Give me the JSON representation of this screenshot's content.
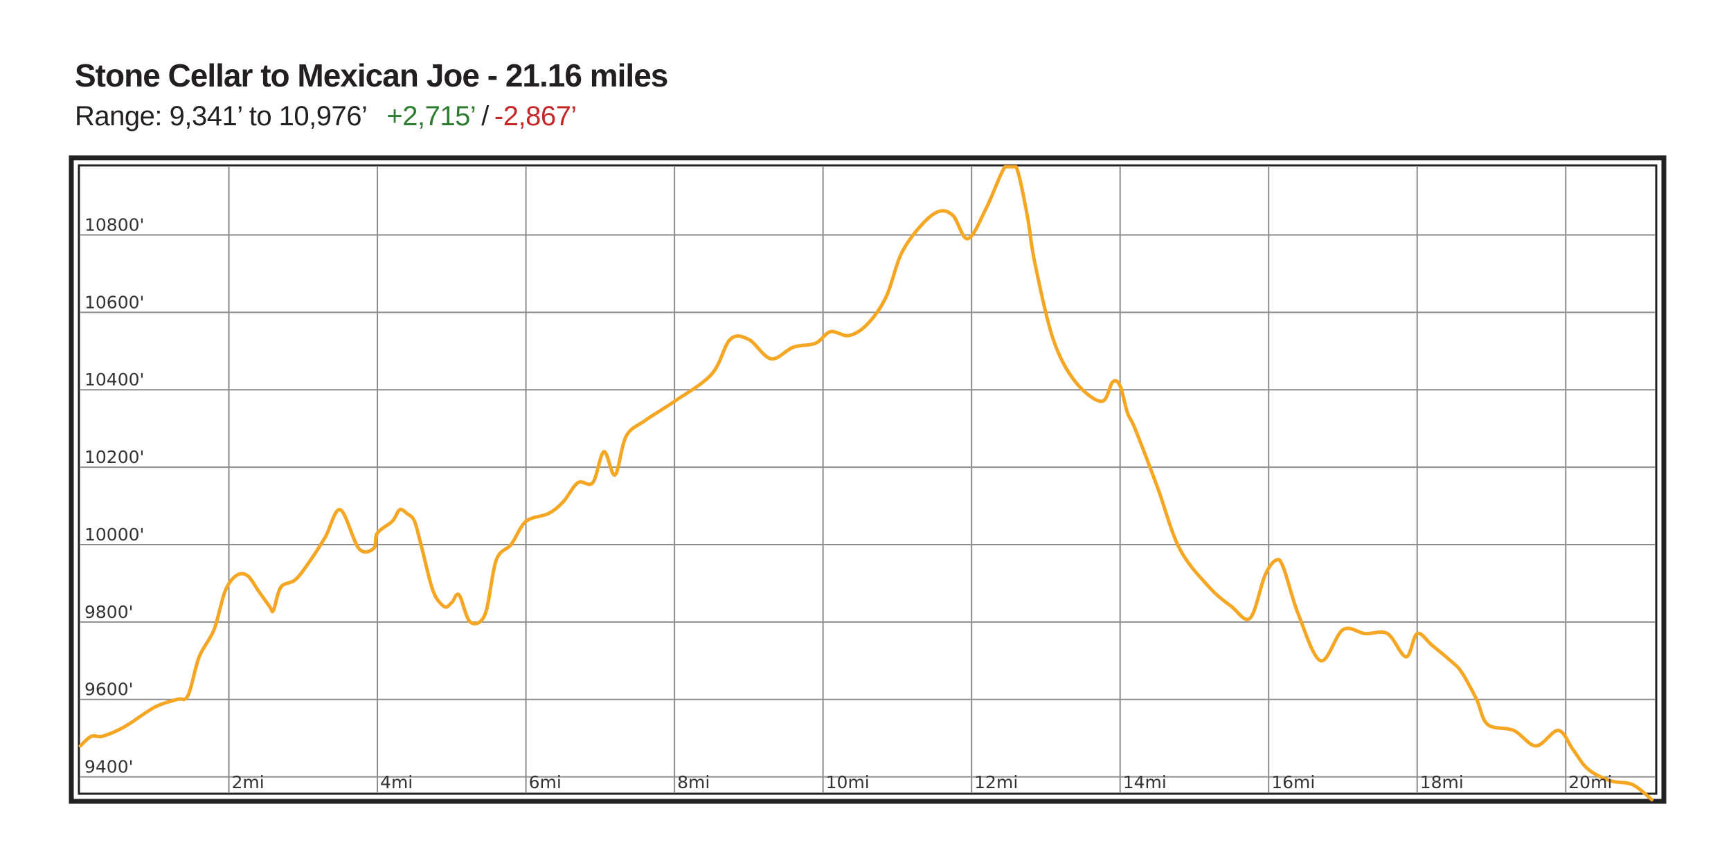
{
  "header": {
    "title": "Stone Cellar to Mexican Joe - 21.16 miles",
    "range_text": "Range: 9,341’ to 10,976’",
    "gain_text": "+2,715’",
    "separator": "/",
    "loss_text": "-2,867’"
  },
  "colors": {
    "line": "#f5a623",
    "gain": "#2e7d32",
    "loss": "#c62828",
    "grid": "#8c8c8c",
    "frame": "#222222"
  },
  "chart_data": {
    "type": "line",
    "title": "Stone Cellar to Mexican Joe - 21.16 miles",
    "subtitle": "Range: 9,341’ to 10,976’ +2,715’ / -2,867’",
    "xlabel": "",
    "ylabel": "",
    "xlim": [
      0,
      21.2
    ],
    "ylim": [
      9360,
      10976
    ],
    "grid": true,
    "legend": "none",
    "x_ticks": [
      {
        "value": 2,
        "label": "2mi"
      },
      {
        "value": 4,
        "label": "4mi"
      },
      {
        "value": 6,
        "label": "6mi"
      },
      {
        "value": 8,
        "label": "8mi"
      },
      {
        "value": 10,
        "label": "10mi"
      },
      {
        "value": 12,
        "label": "12mi"
      },
      {
        "value": 14,
        "label": "14mi"
      },
      {
        "value": 16,
        "label": "16mi"
      },
      {
        "value": 18,
        "label": "18mi"
      },
      {
        "value": 20,
        "label": "20mi"
      }
    ],
    "y_ticks": [
      {
        "value": 9400,
        "label": "9400'"
      },
      {
        "value": 9600,
        "label": "9600'"
      },
      {
        "value": 9800,
        "label": "9800'"
      },
      {
        "value": 10000,
        "label": "10000'"
      },
      {
        "value": 10200,
        "label": "10200'"
      },
      {
        "value": 10400,
        "label": "10400'"
      },
      {
        "value": 10600,
        "label": "10600'"
      },
      {
        "value": 10800,
        "label": "10800'"
      }
    ],
    "series": [
      {
        "x": [
          0,
          0.15,
          0.3,
          0.6,
          1.0,
          1.3,
          1.45,
          1.6,
          1.8,
          1.95,
          2.1,
          2.25,
          2.4,
          2.55,
          2.6,
          2.7,
          2.9,
          3.1,
          3.3,
          3.5,
          3.75,
          3.95,
          4.0,
          4.2,
          4.3,
          4.4,
          4.5,
          4.6,
          4.75,
          4.9,
          5.0,
          5.1,
          5.25,
          5.45,
          5.6,
          5.8,
          6.0,
          6.3,
          6.5,
          6.7,
          6.9,
          7.05,
          7.2,
          7.35,
          7.6,
          8.0,
          8.5,
          8.75,
          9.0,
          9.3,
          9.6,
          9.9,
          10.1,
          10.35,
          10.6,
          10.85,
          11.05,
          11.3,
          11.55,
          11.75,
          11.95,
          12.2,
          12.45,
          12.6,
          12.75,
          12.85,
          13.1,
          13.4,
          13.75,
          13.9,
          14.0,
          14.1,
          14.2,
          14.5,
          14.8,
          15.2,
          15.5,
          15.75,
          15.95,
          16.1,
          16.2,
          16.4,
          16.7,
          17.0,
          17.3,
          17.6,
          17.85,
          18.0,
          18.2,
          18.45,
          18.6,
          18.8,
          18.95,
          19.3,
          19.6,
          19.9,
          20.1,
          20.3,
          20.6,
          20.9,
          21.16
        ],
        "y": [
          9480,
          9505,
          9505,
          9530,
          9580,
          9600,
          9610,
          9710,
          9780,
          9880,
          9920,
          9920,
          9880,
          9840,
          9830,
          9890,
          9910,
          9960,
          10020,
          10090,
          9990,
          9990,
          10030,
          10060,
          10090,
          10080,
          10060,
          9990,
          9880,
          9840,
          9850,
          9870,
          9800,
          9820,
          9960,
          10000,
          10060,
          10080,
          10110,
          10160,
          10160,
          10240,
          10180,
          10280,
          10320,
          10370,
          10440,
          10530,
          10530,
          10480,
          10510,
          10520,
          10550,
          10540,
          10570,
          10640,
          10750,
          10820,
          10860,
          10850,
          10790,
          10870,
          10976,
          10976,
          10850,
          10730,
          10530,
          10420,
          10370,
          10420,
          10410,
          10340,
          10300,
          10150,
          9990,
          9890,
          9840,
          9810,
          9920,
          9960,
          9940,
          9820,
          9700,
          9780,
          9770,
          9770,
          9710,
          9770,
          9740,
          9700,
          9670,
          9600,
          9535,
          9520,
          9480,
          9520,
          9470,
          9420,
          9390,
          9380,
          9341
        ]
      }
    ]
  }
}
